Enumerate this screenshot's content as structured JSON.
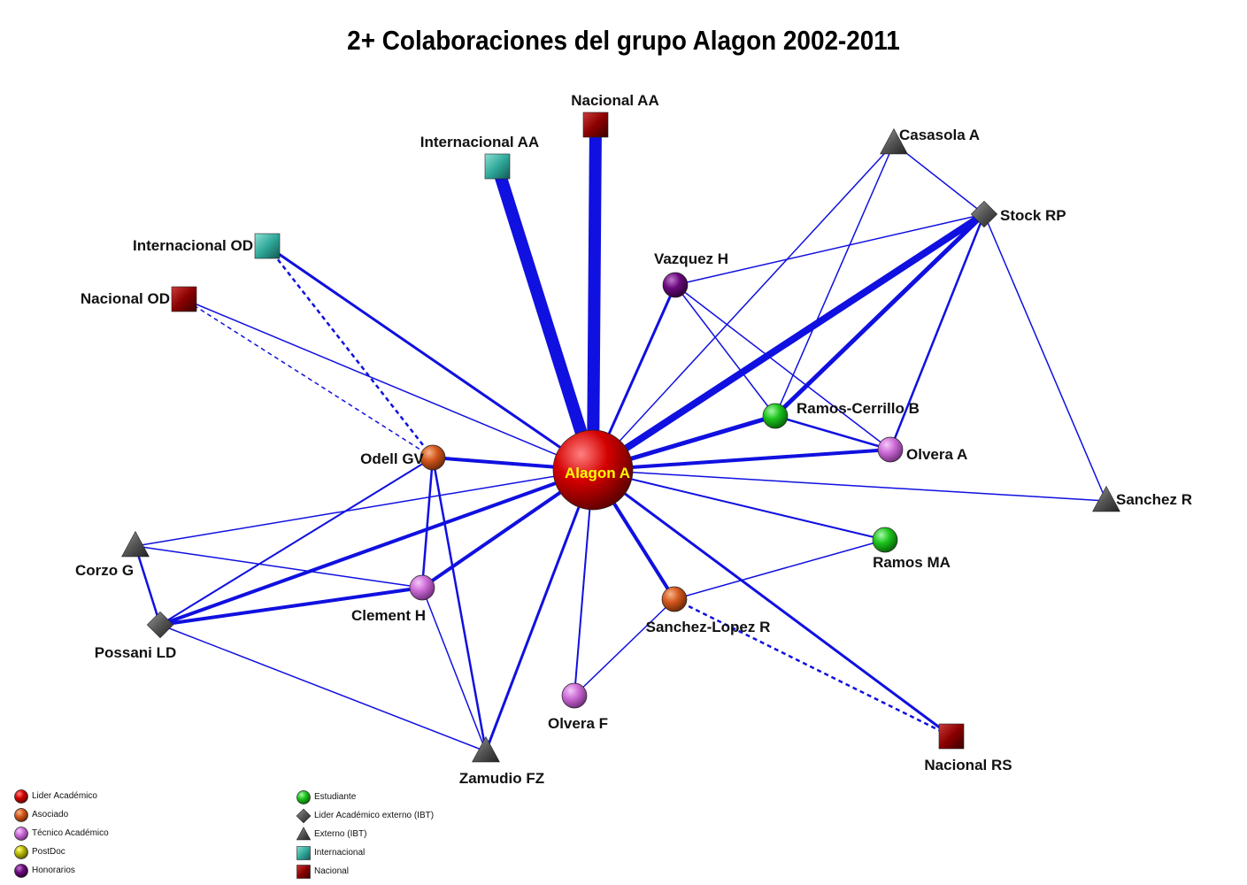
{
  "title": "2+ Colaboraciones del grupo  Alagon 2002-2011",
  "colors": {
    "edge": "#1010e0",
    "lider": "#d40000",
    "asociado": "#d2571c",
    "tecnico": "#cc6bd6",
    "postdoc": "#b8b800",
    "honorarios": "#6a0a7c",
    "estudiante": "#1cc41c",
    "externo": "#555555",
    "internacional": "#2fa89a",
    "nacional": "#8a0000"
  },
  "nodes": [
    {
      "id": "alagon",
      "label": "Alagon A",
      "type": "lider"
    },
    {
      "id": "nacional_aa",
      "label": "Nacional AA",
      "type": "nacional"
    },
    {
      "id": "internacional_aa",
      "label": "Internacional AA",
      "type": "internacional"
    },
    {
      "id": "internacional_od",
      "label": "Internacional OD",
      "type": "internacional"
    },
    {
      "id": "nacional_od",
      "label": "Nacional OD",
      "type": "nacional"
    },
    {
      "id": "casasola",
      "label": "Casasola A",
      "type": "externo"
    },
    {
      "id": "stock",
      "label": "Stock RP",
      "type": "lider_externo"
    },
    {
      "id": "vazquez",
      "label": "Vazquez H",
      "type": "honorarios"
    },
    {
      "id": "ramos_cerrillo",
      "label": "Ramos-Cerrillo B",
      "type": "estudiante"
    },
    {
      "id": "olvera_a",
      "label": "Olvera A",
      "type": "tecnico"
    },
    {
      "id": "sanchez_r",
      "label": "Sanchez R",
      "type": "externo"
    },
    {
      "id": "ramos_ma",
      "label": "Ramos MA",
      "type": "estudiante"
    },
    {
      "id": "sanchez_lopez",
      "label": "Sanchez-Lopez R",
      "type": "asociado"
    },
    {
      "id": "nacional_rs",
      "label": "Nacional RS",
      "type": "nacional"
    },
    {
      "id": "olvera_f",
      "label": "Olvera F",
      "type": "tecnico"
    },
    {
      "id": "zamudio",
      "label": "Zamudio FZ",
      "type": "externo"
    },
    {
      "id": "clement",
      "label": "Clement H",
      "type": "tecnico"
    },
    {
      "id": "odell",
      "label": "Odell GV",
      "type": "asociado"
    },
    {
      "id": "corzo",
      "label": "Corzo G",
      "type": "externo"
    },
    {
      "id": "possani",
      "label": "Possani LD",
      "type": "lider_externo"
    }
  ],
  "edges": [
    {
      "source": "alagon",
      "target": "nacional_aa",
      "weight": 14,
      "dashed": false
    },
    {
      "source": "alagon",
      "target": "internacional_aa",
      "weight": 14,
      "dashed": false
    },
    {
      "source": "alagon",
      "target": "internacional_od",
      "weight": 3,
      "dashed": false
    },
    {
      "source": "alagon",
      "target": "nacional_od",
      "weight": 1.5,
      "dashed": false
    },
    {
      "source": "alagon",
      "target": "stock",
      "weight": 8,
      "dashed": false
    },
    {
      "source": "alagon",
      "target": "casasola",
      "weight": 1.5,
      "dashed": false
    },
    {
      "source": "alagon",
      "target": "vazquez",
      "weight": 3,
      "dashed": false
    },
    {
      "source": "alagon",
      "target": "ramos_cerrillo",
      "weight": 5,
      "dashed": false
    },
    {
      "source": "alagon",
      "target": "olvera_a",
      "weight": 4,
      "dashed": false
    },
    {
      "source": "alagon",
      "target": "sanchez_r",
      "weight": 1.5,
      "dashed": false
    },
    {
      "source": "alagon",
      "target": "ramos_ma",
      "weight": 2,
      "dashed": false
    },
    {
      "source": "alagon",
      "target": "sanchez_lopez",
      "weight": 4,
      "dashed": false
    },
    {
      "source": "alagon",
      "target": "nacional_rs",
      "weight": 3,
      "dashed": false
    },
    {
      "source": "alagon",
      "target": "olvera_f",
      "weight": 2,
      "dashed": false
    },
    {
      "source": "alagon",
      "target": "zamudio",
      "weight": 3,
      "dashed": false
    },
    {
      "source": "alagon",
      "target": "clement",
      "weight": 4,
      "dashed": false
    },
    {
      "source": "alagon",
      "target": "odell",
      "weight": 4,
      "dashed": false
    },
    {
      "source": "alagon",
      "target": "corzo",
      "weight": 1.5,
      "dashed": false
    },
    {
      "source": "alagon",
      "target": "possani",
      "weight": 4,
      "dashed": false
    },
    {
      "source": "ramos_cerrillo",
      "target": "stock",
      "weight": 5,
      "dashed": false
    },
    {
      "source": "ramos_cerrillo",
      "target": "casasola",
      "weight": 1.5,
      "dashed": false
    },
    {
      "source": "ramos_cerrillo",
      "target": "vazquez",
      "weight": 1.5,
      "dashed": false
    },
    {
      "source": "ramos_cerrillo",
      "target": "olvera_a",
      "weight": 2.5,
      "dashed": false
    },
    {
      "source": "olvera_a",
      "target": "stock",
      "weight": 2.5,
      "dashed": false
    },
    {
      "source": "olvera_a",
      "target": "vazquez",
      "weight": 1.5,
      "dashed": false
    },
    {
      "source": "vazquez",
      "target": "stock",
      "weight": 1.5,
      "dashed": false
    },
    {
      "source": "casasola",
      "target": "stock",
      "weight": 1.5,
      "dashed": false
    },
    {
      "source": "stock",
      "target": "sanchez_r",
      "weight": 1.5,
      "dashed": false
    },
    {
      "source": "sanchez_lopez",
      "target": "ramos_ma",
      "weight": 1.5,
      "dashed": false
    },
    {
      "source": "sanchez_lopez",
      "target": "olvera_f",
      "weight": 1.5,
      "dashed": false
    },
    {
      "source": "sanchez_lopez",
      "target": "nacional_rs",
      "weight": 2.5,
      "dashed": true
    },
    {
      "source": "odell",
      "target": "internacional_od",
      "weight": 2.5,
      "dashed": true
    },
    {
      "source": "odell",
      "target": "nacional_od",
      "weight": 1.5,
      "dashed": true
    },
    {
      "source": "odell",
      "target": "clement",
      "weight": 2.5,
      "dashed": false
    },
    {
      "source": "odell",
      "target": "zamudio",
      "weight": 2.5,
      "dashed": false
    },
    {
      "source": "odell",
      "target": "possani",
      "weight": 2,
      "dashed": false
    },
    {
      "source": "clement",
      "target": "corzo",
      "weight": 1.5,
      "dashed": false
    },
    {
      "source": "clement",
      "target": "possani",
      "weight": 4,
      "dashed": false
    },
    {
      "source": "clement",
      "target": "zamudio",
      "weight": 1.5,
      "dashed": false
    },
    {
      "source": "corzo",
      "target": "possani",
      "weight": 2.5,
      "dashed": false
    },
    {
      "source": "possani",
      "target": "zamudio",
      "weight": 1.5,
      "dashed": false
    }
  ],
  "legend": {
    "column1": [
      {
        "label": "Lider Académico",
        "type": "lider"
      },
      {
        "label": "Asociado",
        "type": "asociado"
      },
      {
        "label": "Técnico Académico",
        "type": "tecnico"
      },
      {
        "label": "PostDoc",
        "type": "postdoc"
      },
      {
        "label": "Honorarios",
        "type": "honorarios"
      }
    ],
    "column2": [
      {
        "label": "Estudiante",
        "type": "estudiante"
      },
      {
        "label": "Lider Académico externo (IBT)",
        "type": "lider_externo"
      },
      {
        "label": "Externo (IBT)",
        "type": "externo"
      },
      {
        "label": "Internacional",
        "type": "internacional"
      },
      {
        "label": "Nacional",
        "type": "nacional"
      }
    ]
  }
}
